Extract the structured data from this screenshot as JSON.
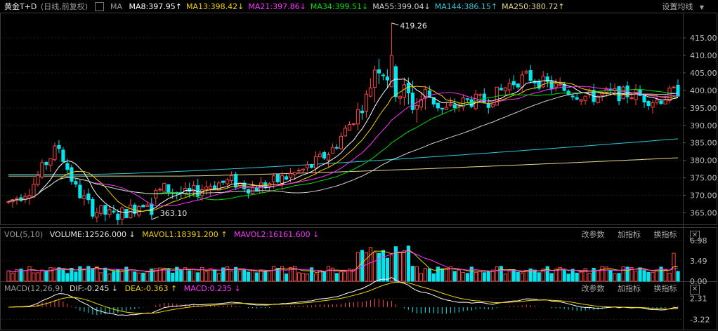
{
  "main_panel": {
    "symbol": "黄金T+D",
    "subtitle": "(日线,前复权)",
    "ma_label": "MA",
    "settings_label": "设置均线",
    "ma_items": [
      {
        "label": "MA8:397.95",
        "arrow": "↑",
        "color": "#ffffff"
      },
      {
        "label": "MA13:398.42",
        "arrow": "↓",
        "color": "#f2d200"
      },
      {
        "label": "MA21:397.86",
        "arrow": "↓",
        "color": "#ff30ff"
      },
      {
        "label": "MA34:399.51",
        "arrow": "↓",
        "color": "#00e000"
      },
      {
        "label": "MA55:399.04",
        "arrow": "↓",
        "color": "#d0d0d0"
      },
      {
        "label": "MA144:386.15",
        "arrow": "↑",
        "color": "#30c8d8"
      },
      {
        "label": "MA250:380.72",
        "arrow": "↑",
        "color": "#e8d890"
      }
    ],
    "y_ticks": [
      "415.00",
      "410.00",
      "405.00",
      "400.00",
      "395.00",
      "390.00",
      "385.00",
      "380.00",
      "375.00",
      "370.00",
      "365.00"
    ],
    "high_label": "419.26",
    "low_label": "363.10"
  },
  "volume_panel": {
    "title": "VOL(5,10)",
    "volume_label": "VOLUME:12526.000",
    "volume_arrow": "↓",
    "mavol1_label": "MAVOL1:18391.200",
    "mavol1_arrow": "↑",
    "mavol2_label": "MAVOL2:16161.600",
    "mavol2_arrow": "↓",
    "y_ticks": [
      "6.98",
      "3.49",
      "0.00"
    ],
    "tools": [
      "改参数",
      "加指标",
      "换指标"
    ]
  },
  "macd_panel": {
    "title": "MACD(12,26,9)",
    "dif_label": "DIF:-0.245",
    "dif_arrow": "↓",
    "dea_label": "DEA:-0.363",
    "dea_arrow": "↑",
    "macd_label": "MACD:0.235",
    "macd_arrow": "↓",
    "y_ticks": [
      "2.31",
      "-3.22"
    ],
    "tools": [
      "改参数",
      "加指标",
      "换指标"
    ]
  },
  "colors": {
    "up": "#ff4444",
    "down": "#00e5ee",
    "grid": "#1d1d1d",
    "panel_border": "#3a3a3a"
  }
}
